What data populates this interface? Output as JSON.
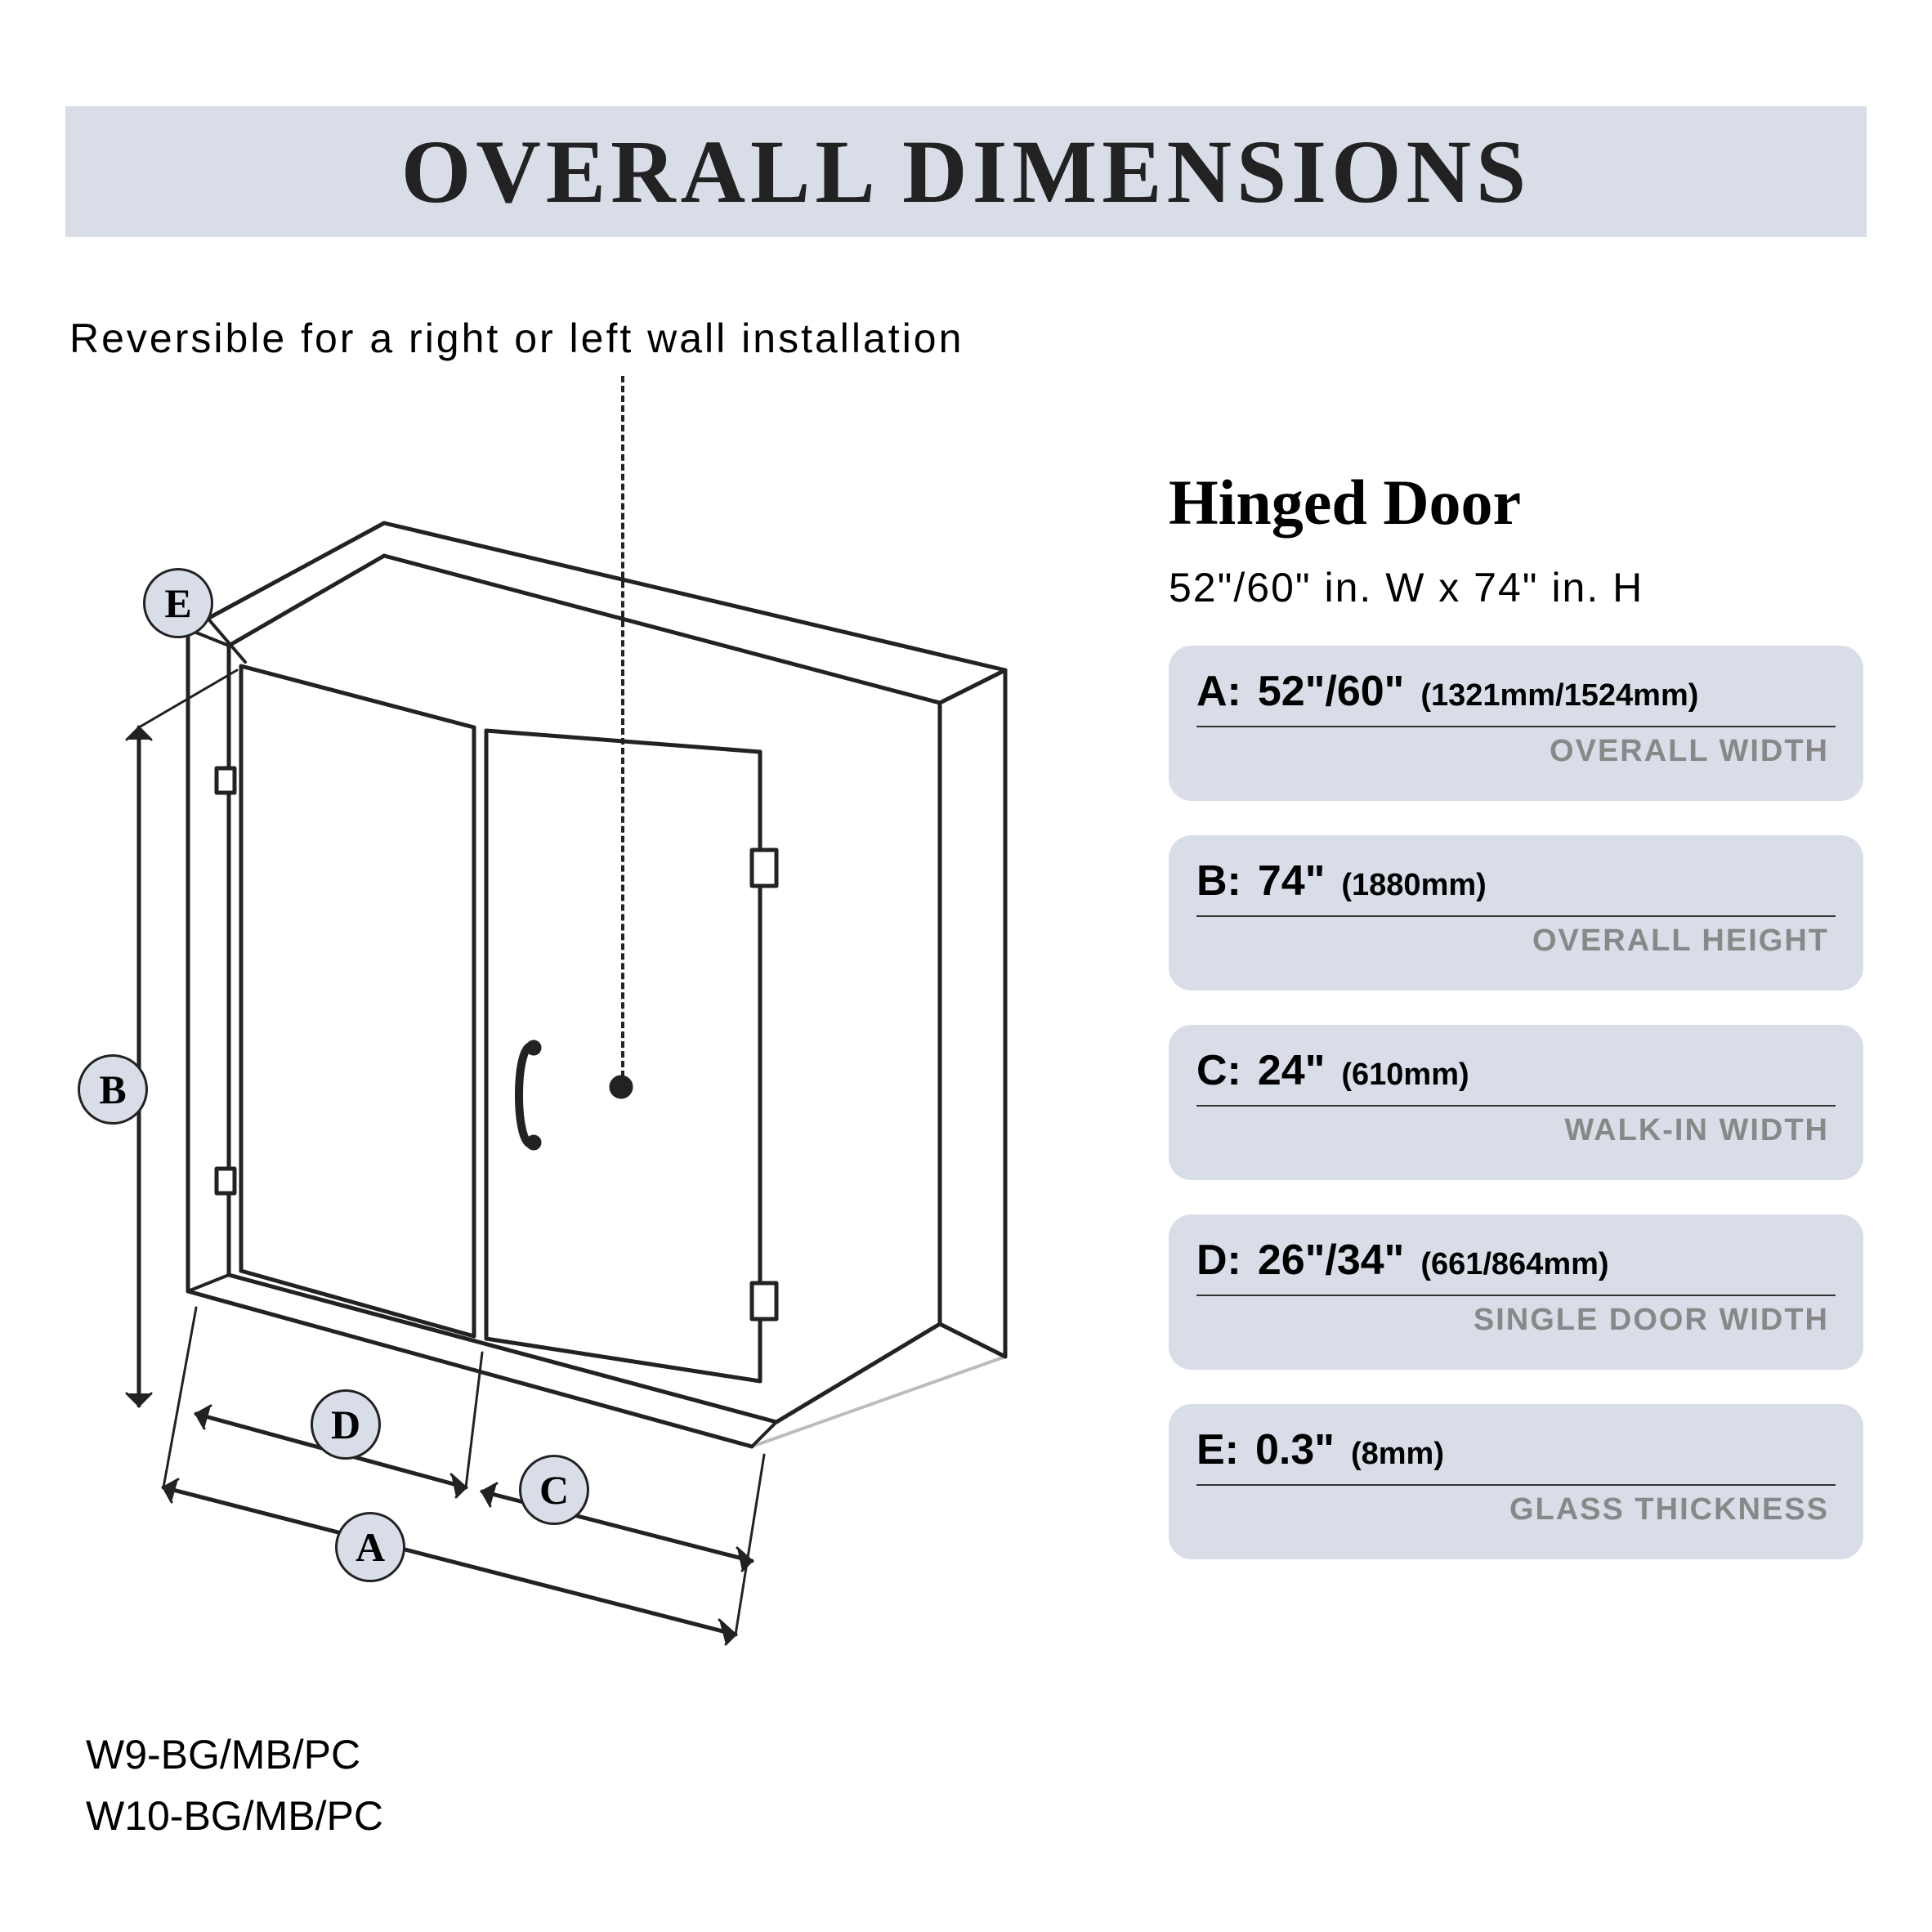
{
  "colors": {
    "title_bg": "#d8dde8",
    "title_text": "#222222",
    "subtitle_text": "#222222",
    "badge_bg": "#d8dde8",
    "card_bg": "#d8dde8",
    "card_label": "#888888",
    "page_bg": "#ffffff",
    "line": "#222222"
  },
  "title": "OVERALL DIMENSIONS",
  "subtitle": "Reversible for a right or left wall installation",
  "panel": {
    "heading": "Hinged Door",
    "sub": "52\"/60\" in. W x 74\" in. H"
  },
  "dims": [
    {
      "key": "A",
      "value": "52\"/60\"",
      "mm": "(1321mm/1524mm)",
      "label": "OVERALL WIDTH"
    },
    {
      "key": "B",
      "value": "74\"",
      "mm": "(1880mm)",
      "label": "OVERALL HEIGHT"
    },
    {
      "key": "C",
      "value": "24\"",
      "mm": "(610mm)",
      "label": "WALK-IN WIDTH"
    },
    {
      "key": "D",
      "value": "26\"/34\"",
      "mm": "(661/864mm)",
      "label": "SINGLE DOOR WIDTH"
    },
    {
      "key": "E",
      "value": "0.3\"",
      "mm": "(8mm)",
      "label": "GLASS THICKNESS"
    }
  ],
  "badges": {
    "E": "E",
    "B": "B",
    "D": "D",
    "A": "A",
    "C": "C"
  },
  "models": [
    "W9-BG/MB/PC",
    "W10-BG/MB/PC"
  ],
  "diagram": {
    "type": "technical-isometric",
    "stroke": "#222222",
    "stroke_width": 4,
    "fill": "#ffffff"
  }
}
